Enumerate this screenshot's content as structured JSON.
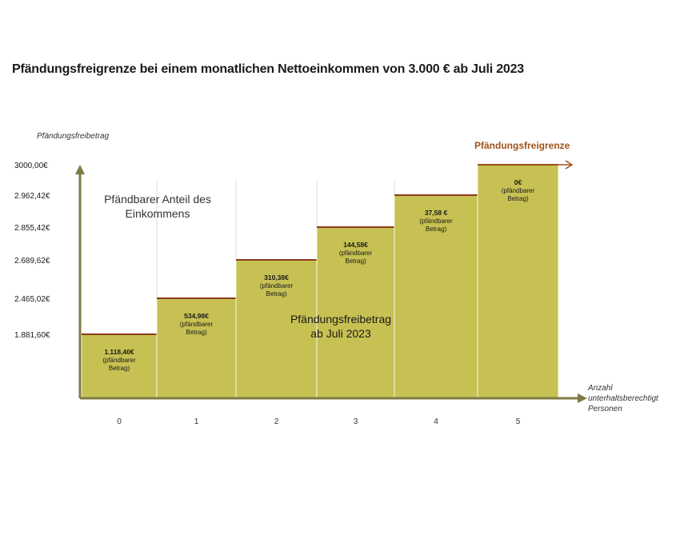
{
  "title": "Pfändungsfreigrenze bei einem monatlichen Nettoeinkommen von 3.000 € ab Juli 2023",
  "chart_data": {
    "type": "bar",
    "title": "Pfändungsfreigrenze bei einem monatlichen Nettoeinkommen von 3.000 € ab Juli 2023",
    "ylabel": "Pfändungsfreibetrag",
    "xlabel": "Anzahl unterhaltsberechtigter Personen",
    "xlabel_lines": [
      "Anzahl",
      "unterhaltsberechtigt",
      "Personen"
    ],
    "categories": [
      "0",
      "1",
      "2",
      "3",
      "4",
      "5"
    ],
    "values": [
      1881.6,
      2465.02,
      2689.62,
      2855.42,
      2962.42,
      3000.0
    ],
    "ytick_labels": [
      "1.881,60€",
      "2.465,02€",
      "2.689,62€",
      "2.855,42€",
      "2.962,42€",
      "3000,00€"
    ],
    "bar_labels": [
      [
        "1.118,40€",
        "(pfändbarer",
        "Betrag)"
      ],
      [
        "534,98€",
        "(pfändbarer",
        "Betrag)"
      ],
      [
        "310,38€",
        "(pfändbarer",
        "Betrag)"
      ],
      [
        "144,58€",
        "(pfändbarer",
        "Betrag)"
      ],
      [
        "37,58 €",
        "(pfändbarer",
        "Betrag)"
      ],
      [
        "0€",
        "(pfändbarer",
        "Betrag)"
      ]
    ],
    "area_label_lines": [
      "Pfändbarer Anteil des",
      "Einkommens"
    ],
    "bar_area_label_lines": [
      "Pfändungsfreibetrag",
      "ab Juli 2023"
    ],
    "limit_label": "Pfändungsfreigrenze",
    "limit_value": 3000.0,
    "colors": {
      "bar": "#c6c152",
      "bar_top": "#8b3a1a",
      "axis": "#7d7b45",
      "limit": "#a0521c",
      "divider": "#dcdcdc"
    }
  }
}
